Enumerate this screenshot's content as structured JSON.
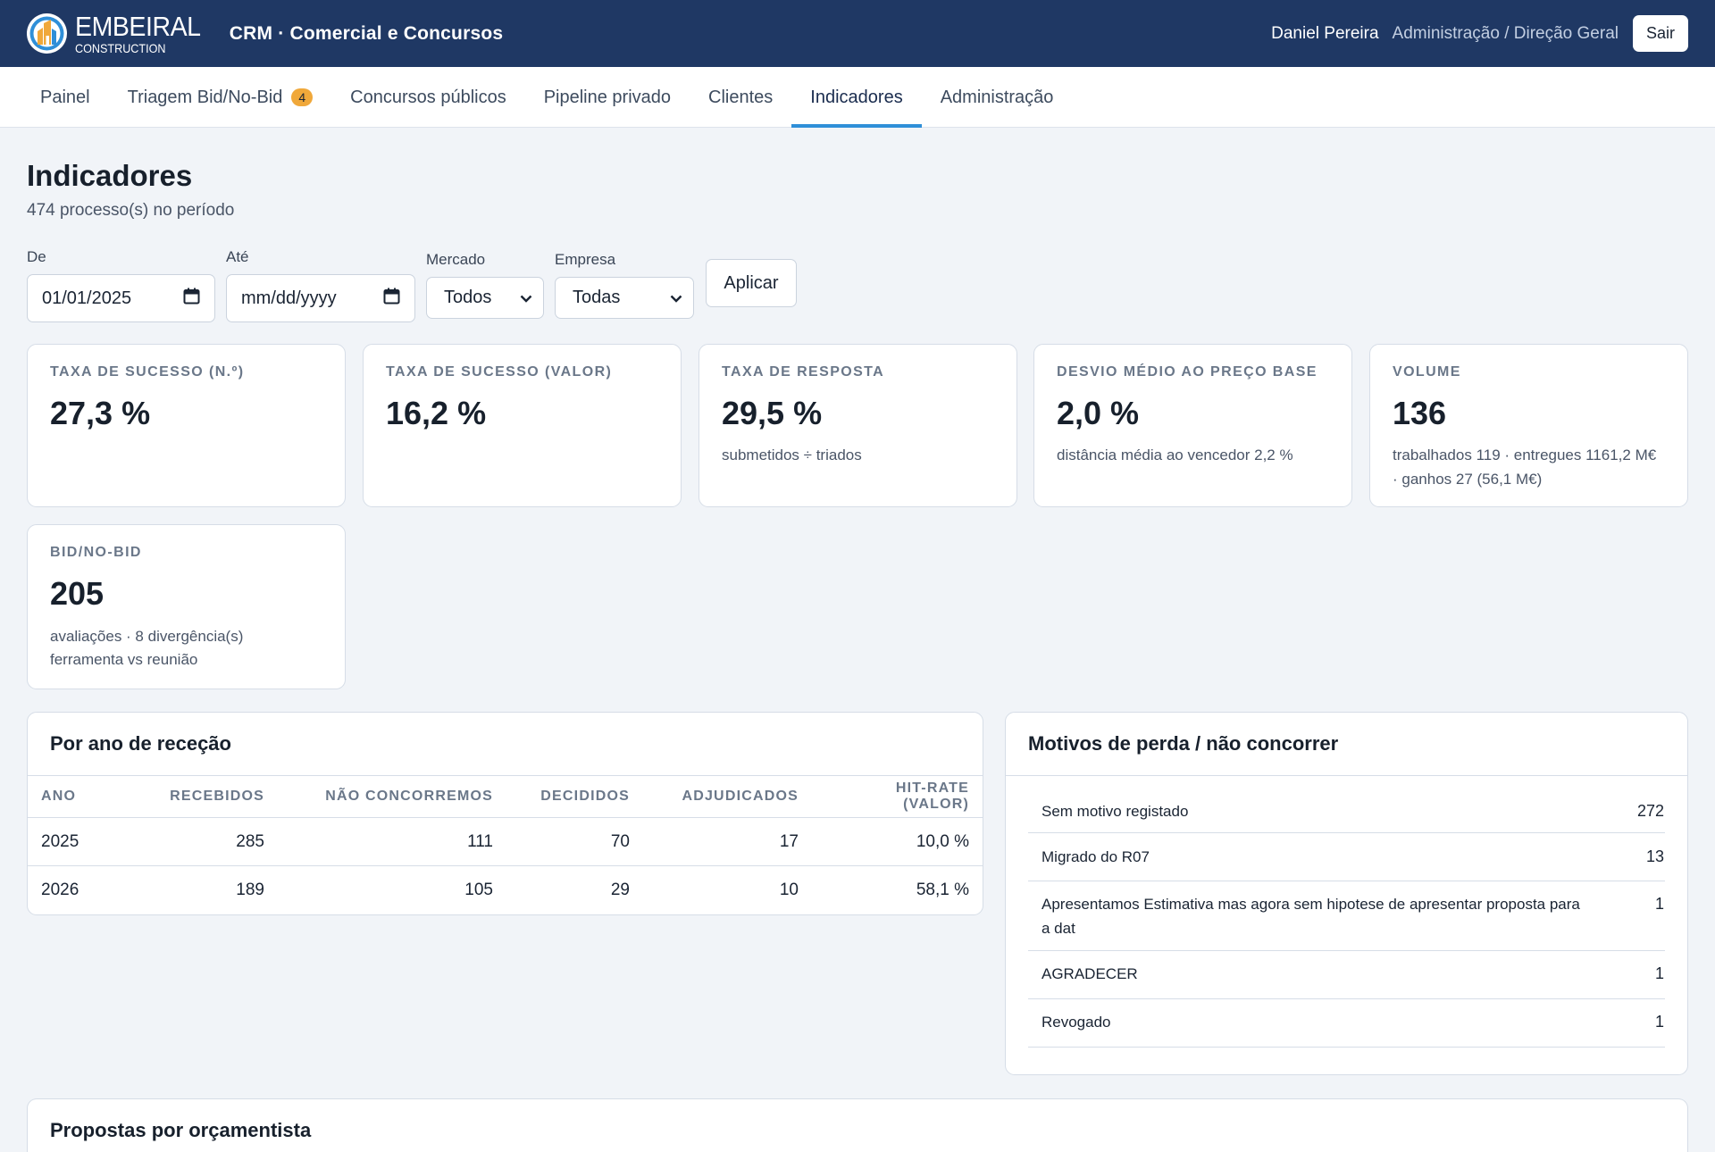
{
  "header": {
    "brand": "EMBEIRAL",
    "brand_sub": "CONSTRUCTION",
    "app_title": "CRM · Comercial e Concursos",
    "user_name": "Daniel Pereira",
    "user_role": "Administração / Direção Geral",
    "logout_label": "Sair",
    "brand_colors": {
      "bar": "#1f3864",
      "logo_orange": "#f0a83a",
      "logo_blue": "#2f8fd8"
    }
  },
  "nav": {
    "tabs": [
      {
        "label": "Painel"
      },
      {
        "label": "Triagem Bid/No-Bid",
        "badge": "4"
      },
      {
        "label": "Concursos públicos"
      },
      {
        "label": "Pipeline privado"
      },
      {
        "label": "Clientes"
      },
      {
        "label": "Indicadores",
        "active": true
      },
      {
        "label": "Administração"
      }
    ],
    "active_color": "#2f8fd8"
  },
  "page": {
    "title": "Indicadores",
    "subtitle": "474 processo(s) no período"
  },
  "filters": {
    "from_label": "De",
    "from_value": "01/01/2025",
    "to_label": "Até",
    "to_value": "mm/dd/yyyy",
    "market_label": "Mercado",
    "market_value": "Todos",
    "company_label": "Empresa",
    "company_value": "Todas",
    "apply_label": "Aplicar"
  },
  "kpis": [
    {
      "label": "Taxa de sucesso (n.º)",
      "value": "27,3 %",
      "note": ""
    },
    {
      "label": "Taxa de sucesso (valor)",
      "value": "16,2 %",
      "note": ""
    },
    {
      "label": "Taxa de resposta",
      "value": "29,5 %",
      "note": "submetidos ÷ triados"
    },
    {
      "label": "Desvio médio ao preço base",
      "value": "2,0 %",
      "note": "distância média ao vencedor 2,2 %"
    },
    {
      "label": "Volume",
      "value": "136",
      "note": "trabalhados 119 · entregues 1161,2 M€ · ganhos 27 (56,1 M€)"
    },
    {
      "label": "Bid/No-Bid",
      "value": "205",
      "note": "avaliações · 8 divergência(s) ferramenta vs reunião"
    }
  ],
  "by_year": {
    "title": "Por ano de receção",
    "columns": [
      "Ano",
      "Recebidos",
      "Não concorremos",
      "Decididos",
      "Adjudicados",
      "Hit-rate (valor)"
    ],
    "rows": [
      [
        "2025",
        "285",
        "111",
        "70",
        "17",
        "10,0 %"
      ],
      [
        "2026",
        "189",
        "105",
        "29",
        "10",
        "58,1 %"
      ]
    ]
  },
  "loss_reasons": {
    "title": "Motivos de perda / não concorrer",
    "rows": [
      {
        "reason": "Sem motivo registado",
        "count": "272"
      },
      {
        "reason": "Migrado do R07",
        "count": "13"
      },
      {
        "reason": "Apresentamos Estimativa mas agora sem hipotese de apresentar proposta para a dat",
        "count": "1"
      },
      {
        "reason": "AGRADECER",
        "count": "1"
      },
      {
        "reason": "Revogado",
        "count": "1"
      }
    ]
  },
  "by_estimator": {
    "title": "Propostas por orçamentista"
  }
}
